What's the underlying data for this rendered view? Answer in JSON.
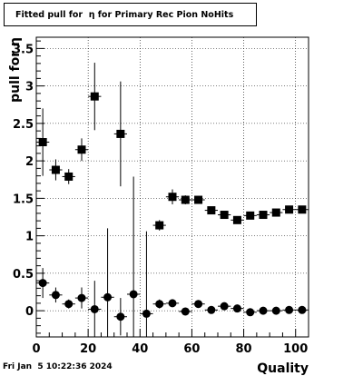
{
  "title": "Fitted pull for  η for Primary Rec Pion NoHits",
  "footer_date": "Fri Jan  5 10:22:36 2024",
  "chart_data": {
    "type": "scatter",
    "title": "Fitted pull for  η for Primary Rec Pion NoHits",
    "xlabel": "Quality",
    "ylabel": "pull for η",
    "xlim": [
      0,
      105
    ],
    "ylim": [
      -0.35,
      3.65
    ],
    "grid": true,
    "x_ticks": [
      0,
      20,
      40,
      60,
      80,
      100
    ],
    "y_ticks": [
      0,
      0.5,
      1,
      1.5,
      2,
      2.5,
      3,
      3.5
    ],
    "series": [
      {
        "marker": "square",
        "points": [
          {
            "x": 2.5,
            "y": 2.25,
            "err": 0.45
          },
          {
            "x": 7.5,
            "y": 1.88,
            "err": 0.14
          },
          {
            "x": 12.5,
            "y": 1.79,
            "err": 0.1
          },
          {
            "x": 17.5,
            "y": 2.15,
            "err": 0.15
          },
          {
            "x": 22.5,
            "y": 2.86,
            "err": 0.45
          },
          {
            "x": 32.5,
            "y": 2.36,
            "err": 0.7
          },
          {
            "x": 47.5,
            "y": 1.14,
            "err": 0.07
          },
          {
            "x": 52.5,
            "y": 1.52,
            "err": 0.1
          },
          {
            "x": 57.5,
            "y": 1.48,
            "err": 0.06
          },
          {
            "x": 62.5,
            "y": 1.48,
            "err": 0.05
          },
          {
            "x": 67.5,
            "y": 1.34,
            "err": 0.04
          },
          {
            "x": 72.5,
            "y": 1.28,
            "err": 0.04
          },
          {
            "x": 77.5,
            "y": 1.21,
            "err": 0.04
          },
          {
            "x": 82.5,
            "y": 1.27,
            "err": 0.04
          },
          {
            "x": 87.5,
            "y": 1.28,
            "err": 0.03
          },
          {
            "x": 92.5,
            "y": 1.31,
            "err": 0.03
          },
          {
            "x": 97.5,
            "y": 1.35,
            "err": 0.03
          },
          {
            "x": 102.5,
            "y": 1.35,
            "err": 0.03
          }
        ]
      },
      {
        "marker": "circle",
        "points": [
          {
            "x": 2.5,
            "y": 0.37,
            "err": 0.2
          },
          {
            "x": 7.5,
            "y": 0.21,
            "err": 0.1
          },
          {
            "x": 12.5,
            "y": 0.09,
            "err": 0.06
          },
          {
            "x": 17.5,
            "y": 0.17,
            "err": 0.14
          },
          {
            "x": 22.5,
            "y": 0.02,
            "err": 0.38
          },
          {
            "x": 27.5,
            "y": 0.18,
            "err": 0.92
          },
          {
            "x": 32.5,
            "y": -0.08,
            "err": 0.25
          },
          {
            "x": 37.5,
            "y": 0.22,
            "err": 1.57
          },
          {
            "x": 42.5,
            "y": -0.04,
            "err": 1.1
          },
          {
            "x": 47.5,
            "y": 0.09,
            "err": 0.06
          },
          {
            "x": 52.5,
            "y": 0.1,
            "err": 0.05
          },
          {
            "x": 57.5,
            "y": -0.01,
            "err": 0.04
          },
          {
            "x": 62.5,
            "y": 0.09,
            "err": 0.04
          },
          {
            "x": 67.5,
            "y": 0.01,
            "err": 0.03
          },
          {
            "x": 72.5,
            "y": 0.06,
            "err": 0.03
          },
          {
            "x": 77.5,
            "y": 0.03,
            "err": 0.03
          },
          {
            "x": 82.5,
            "y": -0.02,
            "err": 0.02
          },
          {
            "x": 87.5,
            "y": 0.0,
            "err": 0.02
          },
          {
            "x": 92.5,
            "y": 0.0,
            "err": 0.02
          },
          {
            "x": 97.5,
            "y": 0.01,
            "err": 0.02
          },
          {
            "x": 102.5,
            "y": 0.01,
            "err": 0.02
          }
        ]
      }
    ]
  }
}
